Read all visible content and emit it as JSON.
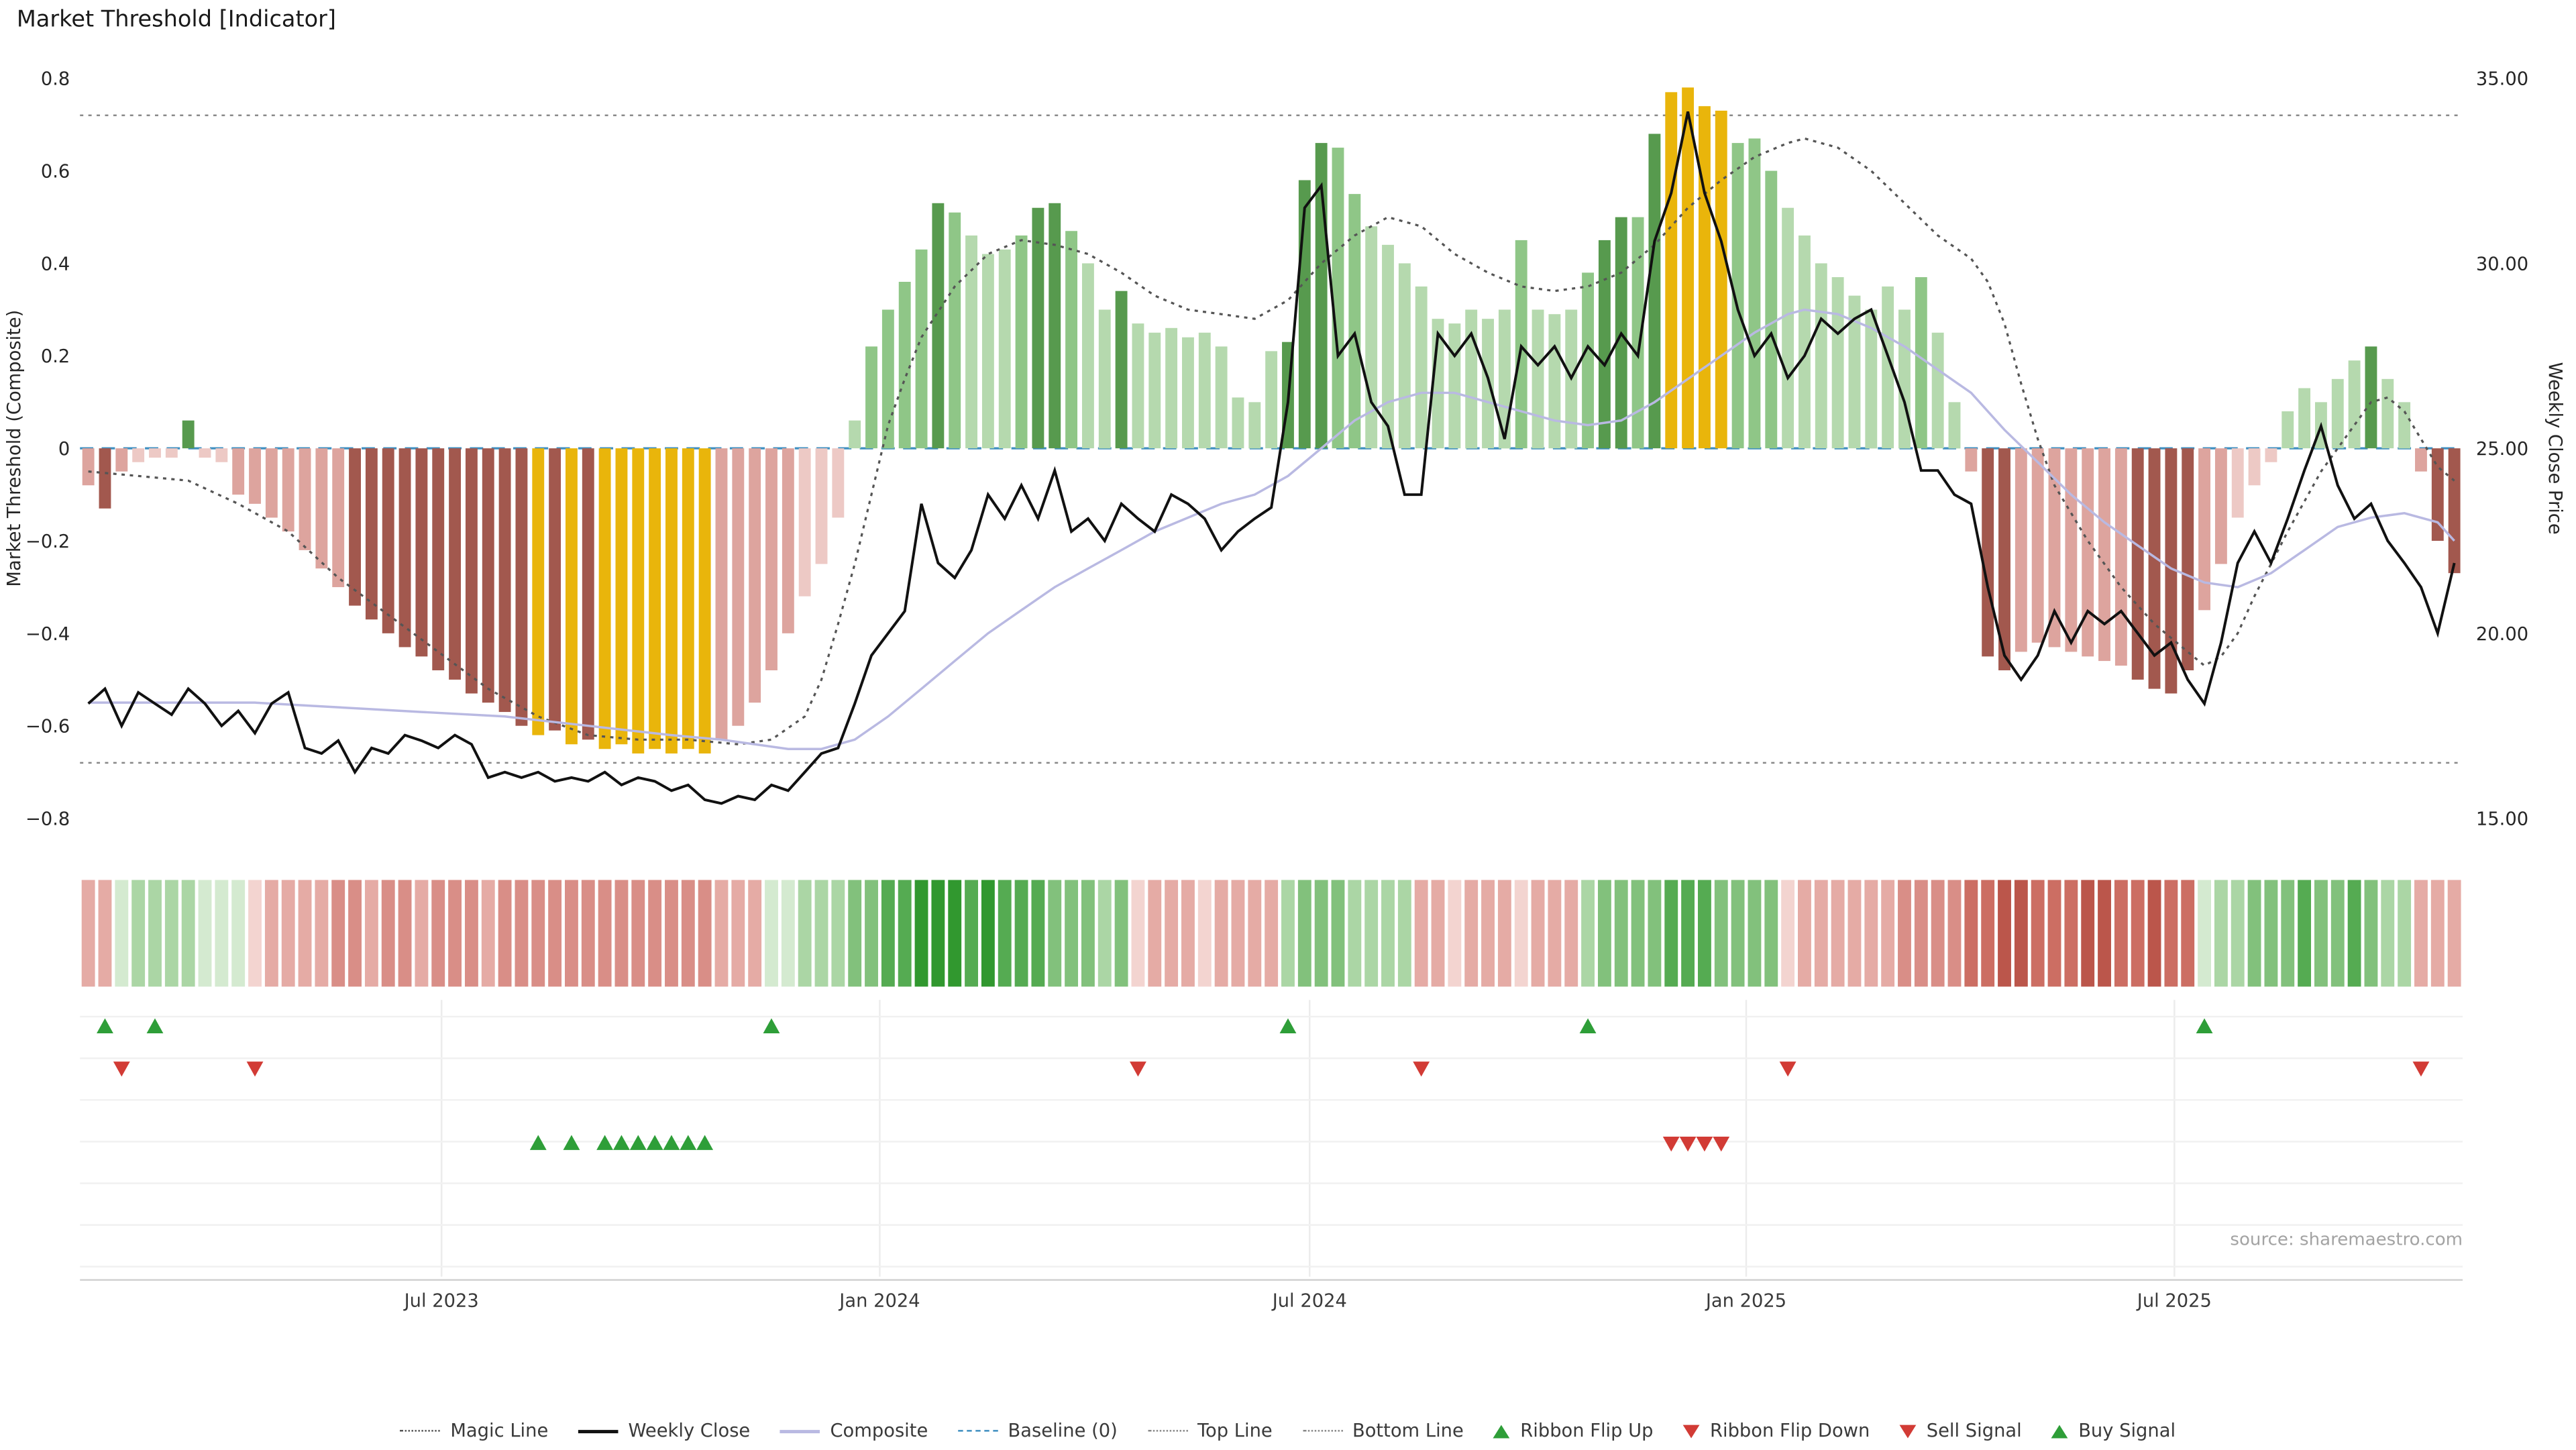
{
  "title": "Market Threshold [Indicator]",
  "source": "source: sharemaestro.com",
  "axes": {
    "left_label": "Market Threshold (Composite)",
    "right_label": "Weekly Close Price",
    "left_ticks": [
      {
        "label": "0.8",
        "v": 0.8
      },
      {
        "label": "0.6",
        "v": 0.6
      },
      {
        "label": "0.4",
        "v": 0.4
      },
      {
        "label": "0.2",
        "v": 0.2
      },
      {
        "label": "0",
        "v": 0.0
      },
      {
        "label": "−0.2",
        "v": -0.2
      },
      {
        "label": "−0.4",
        "v": -0.4
      },
      {
        "label": "−0.6",
        "v": -0.6
      },
      {
        "label": "−0.8",
        "v": -0.8
      }
    ],
    "right_ticks": [
      {
        "label": "35.00",
        "v": 0.8
      },
      {
        "label": "30.00",
        "v": 0.4
      },
      {
        "label": "25.00",
        "v": 0.0
      },
      {
        "label": "20.00",
        "v": -0.4
      },
      {
        "label": "15.00",
        "v": -0.8
      }
    ],
    "x_ticks": [
      {
        "label": "Jul 2023",
        "week": 21.2
      },
      {
        "label": "Jan 2024",
        "week": 47.5
      },
      {
        "label": "Jul 2024",
        "week": 73.3
      },
      {
        "label": "Jan 2025",
        "week": 99.5
      },
      {
        "label": "Jul 2025",
        "week": 125.2
      }
    ]
  },
  "palette": {
    "bars": {
      "pl": "#edc9c5",
      "pk": "#dda49e",
      "mr": "#a2584e",
      "gd": "#e9b50b",
      "gl": "#b5d9ae",
      "gm": "#8fc687",
      "gdk": "#579a4e"
    },
    "ribbon": {
      "P1": "#f3d4d0",
      "P2": "#e5aba5",
      "P3": "#d98e87",
      "R1": "#cc6e63",
      "R2": "#bb564b",
      "G1": "#d4ead0",
      "G2": "#abd6a5",
      "G3": "#82c17c",
      "G4": "#55ab52",
      "G5": "#31982f"
    },
    "magic_line": "#555555",
    "weekly_close": "#111111",
    "composite_line": "#b9b9e2",
    "baseline": "#3f8fc0",
    "top_bottom": "#888888",
    "signal_up": "#2e9e38",
    "signal_down": "#d23b35"
  },
  "legend": [
    {
      "label": "Magic Line",
      "swatch": "magic"
    },
    {
      "label": "Weekly Close",
      "swatch": "weekly"
    },
    {
      "label": "Composite",
      "swatch": "composite"
    },
    {
      "label": "Baseline (0)",
      "swatch": "baseline"
    },
    {
      "label": "Top Line",
      "swatch": "topline"
    },
    {
      "label": "Bottom Line",
      "swatch": "bottomline"
    },
    {
      "label": "Ribbon Flip Up",
      "swatch": "tri-up"
    },
    {
      "label": "Ribbon Flip Down",
      "swatch": "tri-down"
    },
    {
      "label": "Sell Signal",
      "swatch": "tri-down"
    },
    {
      "label": "Buy Signal",
      "swatch": "tri-up"
    }
  ],
  "chart_data": {
    "type": "mixed",
    "title": "Market Threshold [Indicator]",
    "x_unit": "week_index",
    "n_weeks": 143,
    "ylim_left": [
      -0.8,
      0.8
    ],
    "ylim_right": [
      15.0,
      35.0
    ],
    "top_line": 0.72,
    "bottom_line": -0.68,
    "baseline": 0,
    "composite_bars": {
      "values": [
        -0.08,
        -0.13,
        -0.05,
        -0.03,
        -0.02,
        -0.02,
        0.06,
        -0.02,
        -0.03,
        -0.1,
        -0.12,
        -0.15,
        -0.18,
        -0.22,
        -0.26,
        -0.3,
        -0.34,
        -0.37,
        -0.4,
        -0.43,
        -0.45,
        -0.48,
        -0.5,
        -0.53,
        -0.55,
        -0.57,
        -0.6,
        -0.62,
        -0.61,
        -0.64,
        -0.63,
        -0.65,
        -0.64,
        -0.66,
        -0.65,
        -0.66,
        -0.65,
        -0.66,
        -0.63,
        -0.6,
        -0.55,
        -0.48,
        -0.4,
        -0.32,
        -0.25,
        -0.15,
        0.06,
        0.22,
        0.3,
        0.36,
        0.43,
        0.53,
        0.51,
        0.46,
        0.42,
        0.43,
        0.46,
        0.52,
        0.53,
        0.47,
        0.4,
        0.3,
        0.34,
        0.27,
        0.25,
        0.26,
        0.24,
        0.25,
        0.22,
        0.11,
        0.1,
        0.21,
        0.23,
        0.58,
        0.66,
        0.65,
        0.55,
        0.48,
        0.44,
        0.4,
        0.35,
        0.28,
        0.27,
        0.3,
        0.28,
        0.3,
        0.45,
        0.3,
        0.29,
        0.3,
        0.38,
        0.45,
        0.5,
        0.5,
        0.68,
        0.77,
        0.78,
        0.74,
        0.73,
        0.66,
        0.67,
        0.6,
        0.52,
        0.46,
        0.4,
        0.37,
        0.33,
        0.3,
        0.35,
        0.3,
        0.37,
        0.25,
        0.1,
        -0.05,
        -0.45,
        -0.48,
        -0.44,
        -0.42,
        -0.43,
        -0.44,
        -0.45,
        -0.46,
        -0.47,
        -0.5,
        -0.52,
        -0.53,
        -0.48,
        -0.35,
        -0.25,
        -0.15,
        -0.08,
        -0.03,
        0.08,
        0.13,
        0.1,
        0.15,
        0.19,
        0.22,
        0.15,
        0.1,
        -0.05,
        -0.2,
        -0.27
      ],
      "colors": [
        "pk",
        "mr",
        "pk",
        "pl",
        "pl",
        "pl",
        "gdk",
        "pl",
        "pl",
        "pk",
        "pk",
        "pk",
        "pk",
        "pk",
        "pk",
        "pk",
        "mr",
        "mr",
        "mr",
        "mr",
        "mr",
        "mr",
        "mr",
        "mr",
        "mr",
        "mr",
        "mr",
        "gd",
        "mr",
        "gd",
        "mr",
        "gd",
        "gd",
        "gd",
        "gd",
        "gd",
        "gd",
        "gd",
        "pk",
        "pk",
        "pk",
        "pk",
        "pk",
        "pl",
        "pl",
        "pl",
        "gl",
        "gm",
        "gm",
        "gm",
        "gm",
        "gdk",
        "gm",
        "gl",
        "gl",
        "gl",
        "gm",
        "gdk",
        "gdk",
        "gm",
        "gl",
        "gl",
        "gdk",
        "gl",
        "gl",
        "gl",
        "gl",
        "gl",
        "gl",
        "gl",
        "gl",
        "gl",
        "gdk",
        "gdk",
        "gdk",
        "gm",
        "gm",
        "gl",
        "gl",
        "gl",
        "gl",
        "gl",
        "gl",
        "gl",
        "gl",
        "gl",
        "gm",
        "gl",
        "gl",
        "gl",
        "gm",
        "gdk",
        "gdk",
        "gm",
        "gdk",
        "gd",
        "gd",
        "gd",
        "gd",
        "gm",
        "gm",
        "gm",
        "gl",
        "gl",
        "gl",
        "gl",
        "gl",
        "gl",
        "gl",
        "gl",
        "gm",
        "gl",
        "gl",
        "pk",
        "mr",
        "mr",
        "pk",
        "pk",
        "pk",
        "pk",
        "pk",
        "pk",
        "pk",
        "mr",
        "mr",
        "mr",
        "mr",
        "pk",
        "pk",
        "pl",
        "pl",
        "pl",
        "gl",
        "gl",
        "gl",
        "gl",
        "gl",
        "gdk",
        "gl",
        "gl",
        "pk",
        "mr",
        "mr"
      ]
    },
    "weekly_close": [
      18.1,
      18.5,
      17.5,
      18.4,
      18.1,
      17.8,
      18.5,
      18.1,
      17.5,
      17.9,
      17.3,
      18.1,
      18.4,
      16.9,
      16.75,
      17.1,
      16.25,
      16.9,
      16.75,
      17.25,
      17.1,
      16.9,
      17.25,
      17.0,
      16.1,
      16.25,
      16.1,
      16.25,
      16.0,
      16.1,
      16.0,
      16.25,
      15.9,
      16.1,
      16.0,
      15.75,
      15.9,
      15.5,
      15.4,
      15.6,
      15.5,
      15.9,
      15.75,
      16.25,
      16.75,
      16.9,
      18.1,
      19.4,
      20.0,
      20.6,
      23.5,
      21.9,
      21.5,
      22.25,
      23.75,
      23.1,
      24.0,
      23.1,
      24.4,
      22.75,
      23.1,
      22.5,
      23.5,
      23.1,
      22.75,
      23.75,
      23.5,
      23.1,
      22.25,
      22.75,
      23.1,
      23.4,
      26.25,
      31.5,
      32.1,
      27.5,
      28.1,
      26.25,
      25.6,
      23.75,
      23.75,
      28.1,
      27.5,
      28.1,
      26.9,
      25.25,
      27.75,
      27.25,
      27.75,
      26.9,
      27.75,
      27.25,
      28.1,
      27.5,
      30.6,
      31.9,
      34.1,
      31.9,
      30.6,
      28.75,
      27.5,
      28.1,
      26.9,
      27.5,
      28.5,
      28.1,
      28.5,
      28.75,
      27.5,
      26.25,
      24.4,
      24.4,
      23.75,
      23.5,
      21.25,
      19.4,
      18.75,
      19.4,
      20.6,
      19.75,
      20.6,
      20.25,
      20.6,
      20.0,
      19.4,
      19.75,
      18.75,
      18.1,
      19.75,
      21.9,
      22.75,
      21.9,
      23.1,
      24.4,
      25.6,
      24.0,
      23.1,
      23.5,
      22.5,
      21.9,
      21.25,
      20.0,
      21.9
    ],
    "magic_line": [
      [
        0,
        -0.05
      ],
      [
        3,
        -0.06
      ],
      [
        6,
        -0.07
      ],
      [
        9,
        -0.12
      ],
      [
        12,
        -0.18
      ],
      [
        15,
        -0.28
      ],
      [
        18,
        -0.36
      ],
      [
        21,
        -0.44
      ],
      [
        24,
        -0.52
      ],
      [
        27,
        -0.58
      ],
      [
        30,
        -0.62
      ],
      [
        33,
        -0.63
      ],
      [
        36,
        -0.63
      ],
      [
        39,
        -0.64
      ],
      [
        41,
        -0.63
      ],
      [
        43,
        -0.58
      ],
      [
        44,
        -0.5
      ],
      [
        45,
        -0.38
      ],
      [
        46,
        -0.25
      ],
      [
        47,
        -0.1
      ],
      [
        48,
        0.05
      ],
      [
        49,
        0.15
      ],
      [
        50,
        0.24
      ],
      [
        52,
        0.35
      ],
      [
        54,
        0.42
      ],
      [
        56,
        0.45
      ],
      [
        58,
        0.44
      ],
      [
        60,
        0.42
      ],
      [
        62,
        0.38
      ],
      [
        64,
        0.33
      ],
      [
        66,
        0.3
      ],
      [
        68,
        0.29
      ],
      [
        70,
        0.28
      ],
      [
        72,
        0.32
      ],
      [
        74,
        0.4
      ],
      [
        76,
        0.46
      ],
      [
        78,
        0.5
      ],
      [
        80,
        0.48
      ],
      [
        82,
        0.42
      ],
      [
        84,
        0.38
      ],
      [
        86,
        0.35
      ],
      [
        88,
        0.34
      ],
      [
        90,
        0.35
      ],
      [
        92,
        0.38
      ],
      [
        94,
        0.44
      ],
      [
        96,
        0.52
      ],
      [
        98,
        0.58
      ],
      [
        100,
        0.63
      ],
      [
        102,
        0.66
      ],
      [
        103,
        0.67
      ],
      [
        105,
        0.65
      ],
      [
        107,
        0.6
      ],
      [
        109,
        0.53
      ],
      [
        111,
        0.46
      ],
      [
        113,
        0.41
      ],
      [
        114,
        0.36
      ],
      [
        115,
        0.27
      ],
      [
        116,
        0.14
      ],
      [
        117,
        0.02
      ],
      [
        118,
        -0.08
      ],
      [
        120,
        -0.2
      ],
      [
        122,
        -0.3
      ],
      [
        124,
        -0.38
      ],
      [
        126,
        -0.44
      ],
      [
        127,
        -0.47
      ],
      [
        128,
        -0.45
      ],
      [
        129,
        -0.4
      ],
      [
        130,
        -0.32
      ],
      [
        132,
        -0.18
      ],
      [
        134,
        -0.05
      ],
      [
        136,
        0.05
      ],
      [
        137,
        0.1
      ],
      [
        138,
        0.11
      ],
      [
        139,
        0.08
      ],
      [
        140,
        0.02
      ],
      [
        141,
        -0.04
      ],
      [
        142,
        -0.07
      ]
    ],
    "composite_line": [
      [
        0,
        -0.55
      ],
      [
        5,
        -0.55
      ],
      [
        10,
        -0.55
      ],
      [
        15,
        -0.56
      ],
      [
        20,
        -0.57
      ],
      [
        25,
        -0.58
      ],
      [
        30,
        -0.6
      ],
      [
        35,
        -0.62
      ],
      [
        38,
        -0.63
      ],
      [
        40,
        -0.64
      ],
      [
        42,
        -0.65
      ],
      [
        44,
        -0.65
      ],
      [
        46,
        -0.63
      ],
      [
        48,
        -0.58
      ],
      [
        50,
        -0.52
      ],
      [
        52,
        -0.46
      ],
      [
        54,
        -0.4
      ],
      [
        56,
        -0.35
      ],
      [
        58,
        -0.3
      ],
      [
        60,
        -0.26
      ],
      [
        62,
        -0.22
      ],
      [
        64,
        -0.18
      ],
      [
        66,
        -0.15
      ],
      [
        68,
        -0.12
      ],
      [
        70,
        -0.1
      ],
      [
        72,
        -0.06
      ],
      [
        74,
        0.0
      ],
      [
        76,
        0.06
      ],
      [
        78,
        0.1
      ],
      [
        80,
        0.12
      ],
      [
        82,
        0.12
      ],
      [
        84,
        0.1
      ],
      [
        86,
        0.08
      ],
      [
        88,
        0.06
      ],
      [
        90,
        0.05
      ],
      [
        92,
        0.06
      ],
      [
        94,
        0.1
      ],
      [
        96,
        0.15
      ],
      [
        98,
        0.2
      ],
      [
        100,
        0.25
      ],
      [
        102,
        0.29
      ],
      [
        103,
        0.3
      ],
      [
        105,
        0.29
      ],
      [
        107,
        0.26
      ],
      [
        109,
        0.22
      ],
      [
        111,
        0.17
      ],
      [
        113,
        0.12
      ],
      [
        115,
        0.04
      ],
      [
        117,
        -0.03
      ],
      [
        119,
        -0.1
      ],
      [
        121,
        -0.16
      ],
      [
        123,
        -0.21
      ],
      [
        125,
        -0.26
      ],
      [
        127,
        -0.29
      ],
      [
        129,
        -0.3
      ],
      [
        131,
        -0.27
      ],
      [
        133,
        -0.22
      ],
      [
        135,
        -0.17
      ],
      [
        137,
        -0.15
      ],
      [
        139,
        -0.14
      ],
      [
        141,
        -0.16
      ],
      [
        142,
        -0.2
      ]
    ],
    "ribbon": [
      "P2",
      "P2",
      "G1",
      "G2",
      "G2",
      "G2",
      "G2",
      "G1",
      "G1",
      "G1",
      "P1",
      "P2",
      "P2",
      "P2",
      "P2",
      "P3",
      "P3",
      "P2",
      "P3",
      "P3",
      "P2",
      "P3",
      "P3",
      "P3",
      "P2",
      "P3",
      "P3",
      "P3",
      "P3",
      "P3",
      "P3",
      "P3",
      "P3",
      "P3",
      "P3",
      "P3",
      "P3",
      "P3",
      "P2",
      "P2",
      "P2",
      "G1",
      "G1",
      "G2",
      "G2",
      "G2",
      "G3",
      "G3",
      "G4",
      "G4",
      "G5",
      "G5",
      "G5",
      "G4",
      "G5",
      "G4",
      "G4",
      "G4",
      "G3",
      "G3",
      "G3",
      "G2",
      "G3",
      "P1",
      "P2",
      "P2",
      "P2",
      "P1",
      "P2",
      "P2",
      "P2",
      "P2",
      "G2",
      "G3",
      "G3",
      "G3",
      "G2",
      "G2",
      "G2",
      "G2",
      "P2",
      "P2",
      "P1",
      "P2",
      "P2",
      "P2",
      "P1",
      "P2",
      "P2",
      "P2",
      "G2",
      "G3",
      "G3",
      "G3",
      "G3",
      "G4",
      "G4",
      "G4",
      "G3",
      "G3",
      "G3",
      "G3",
      "P1",
      "P2",
      "P2",
      "P2",
      "P2",
      "P2",
      "P2",
      "P3",
      "P3",
      "P3",
      "P3",
      "R1",
      "R1",
      "R2",
      "R2",
      "R1",
      "R1",
      "R1",
      "R2",
      "R2",
      "R1",
      "R1",
      "R2",
      "R1",
      "R1",
      "G1",
      "G2",
      "G2",
      "G3",
      "G3",
      "G3",
      "G4",
      "G3",
      "G3",
      "G4",
      "G3",
      "G2",
      "G2",
      "P2",
      "P2",
      "P2"
    ],
    "signals": {
      "ribbon_flip_up": [
        1,
        4,
        41,
        72,
        90,
        127
      ],
      "ribbon_flip_down": [
        2,
        10,
        63,
        80,
        102,
        140
      ],
      "buy": [
        27,
        29,
        31,
        32,
        33,
        34,
        35,
        36,
        37
      ],
      "sell": [
        95,
        96,
        97,
        98
      ]
    }
  }
}
